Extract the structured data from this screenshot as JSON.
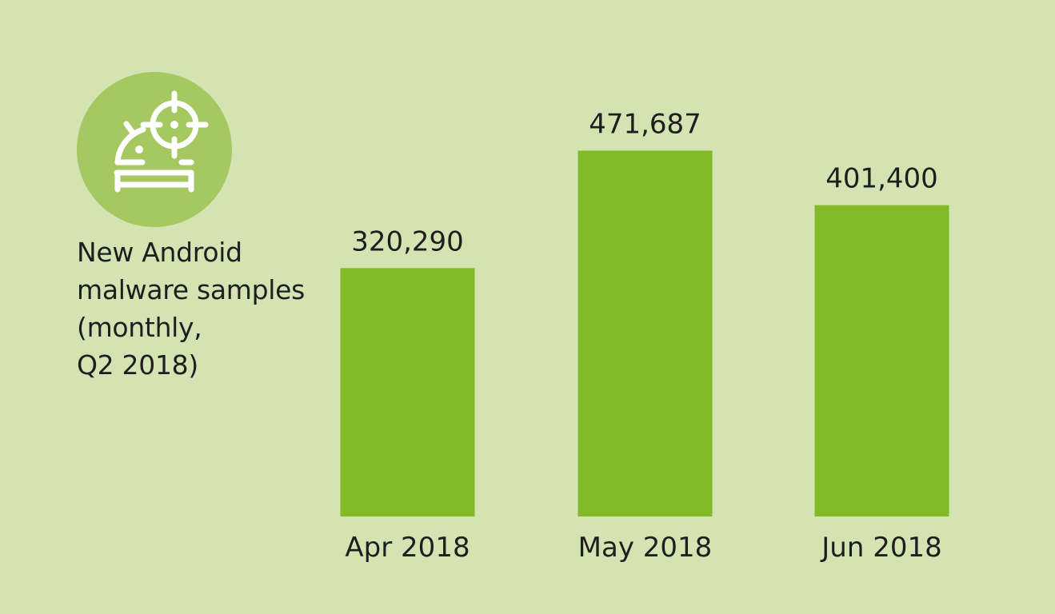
{
  "colors": {
    "background": "#d4e3b2",
    "bar": "#82ba28",
    "badge": "#a5c960",
    "icon": "#ffffff",
    "text": "#1e1e1e"
  },
  "icon": {
    "name": "android-target-icon"
  },
  "chart_data": {
    "type": "bar",
    "title_lines": [
      "New Android",
      "malware samples",
      "(monthly,",
      "Q2 2018)"
    ],
    "categories": [
      "Apr 2018",
      "May 2018",
      "Jun 2018"
    ],
    "values": [
      320290,
      471687,
      401400
    ],
    "value_labels": [
      "320,290",
      "471,687",
      "401,400"
    ],
    "ylim": [
      0,
      500000
    ],
    "xlabel": "",
    "ylabel": "",
    "grid": false,
    "legend": "none"
  }
}
